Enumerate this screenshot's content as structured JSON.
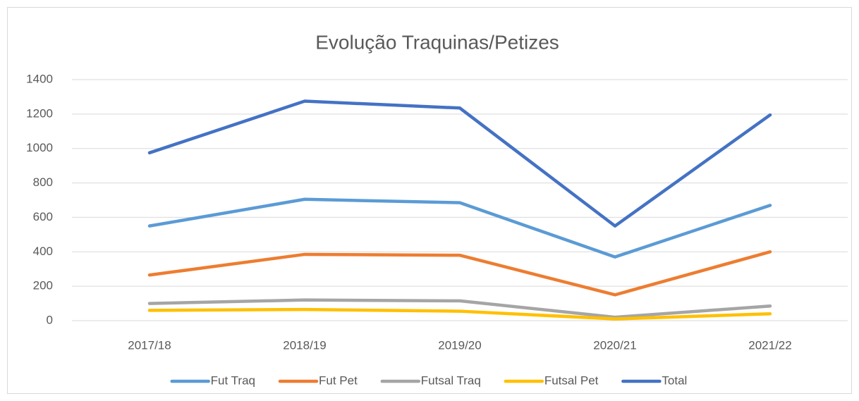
{
  "chart_data": {
    "type": "line",
    "title": "Evolução Traquinas/Petizes",
    "categories": [
      "2017/18",
      "2018/19",
      "2019/20",
      "2020/21",
      "2021/22"
    ],
    "series": [
      {
        "name": "Fut Traq",
        "color": "#5b9bd5",
        "values": [
          550,
          705,
          685,
          370,
          670
        ]
      },
      {
        "name": "Fut Pet",
        "color": "#ed7d31",
        "values": [
          265,
          385,
          380,
          150,
          400
        ]
      },
      {
        "name": "Futsal Traq",
        "color": "#a5a5a5",
        "values": [
          100,
          120,
          115,
          20,
          85
        ]
      },
      {
        "name": "Futsal Pet",
        "color": "#ffc000",
        "values": [
          60,
          65,
          55,
          10,
          40
        ]
      },
      {
        "name": "Total",
        "color": "#4472c4",
        "values": [
          975,
          1275,
          1235,
          550,
          1195
        ]
      }
    ],
    "ylim": [
      0,
      1400
    ],
    "yticks": [
      0,
      200,
      400,
      600,
      800,
      1000,
      1200,
      1400
    ],
    "grid": true,
    "legend": "bottom"
  }
}
